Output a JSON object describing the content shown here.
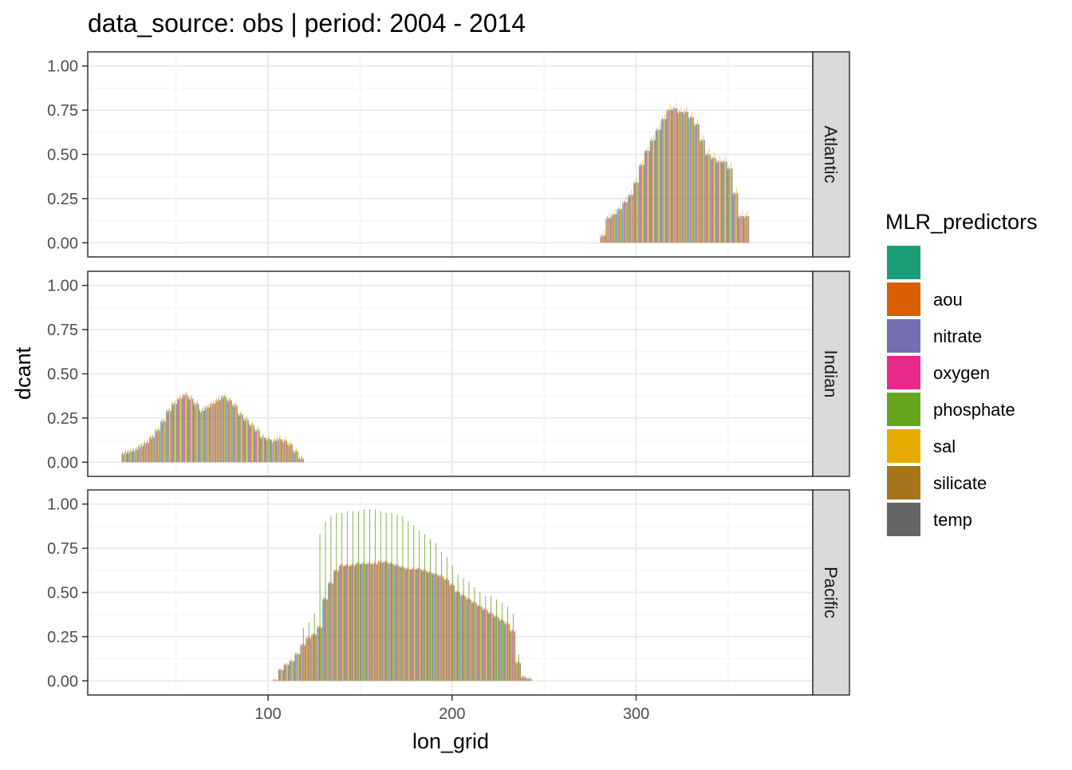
{
  "chart_data": {
    "type": "bar",
    "title": "data_source: obs | period: 2004 - 2014",
    "xlabel": "lon_grid",
    "ylabel": "dcant",
    "xlim": [
      2,
      396
    ],
    "ylim": [
      -0.08,
      1.08
    ],
    "x_ticks": [
      100,
      200,
      300
    ],
    "y_ticks": [
      0.0,
      0.25,
      0.5,
      0.75,
      1.0
    ],
    "y_tick_labels": [
      "0.00",
      "0.25",
      "0.50",
      "0.75",
      "1.00"
    ],
    "grid": true,
    "legend_position": "right",
    "legend": {
      "title": "MLR_predictors",
      "entries": [
        {
          "label": "",
          "color": "#1B9E77"
        },
        {
          "label": "aou",
          "color": "#D95F02"
        },
        {
          "label": "nitrate",
          "color": "#7570B3"
        },
        {
          "label": "oxygen",
          "color": "#E7298A"
        },
        {
          "label": "phosphate",
          "color": "#66A61E"
        },
        {
          "label": "sal",
          "color": "#E6AB02"
        },
        {
          "label": "silicate",
          "color": "#A6761D"
        },
        {
          "label": "temp",
          "color": "#666666"
        }
      ]
    },
    "facets": [
      {
        "label": "Atlantic",
        "points": [
          [
            282,
            0.04
          ],
          [
            285,
            0.14
          ],
          [
            288,
            0.16
          ],
          [
            291,
            0.19
          ],
          [
            294,
            0.23
          ],
          [
            297,
            0.27
          ],
          [
            300,
            0.34
          ],
          [
            303,
            0.44
          ],
          [
            306,
            0.52
          ],
          [
            309,
            0.58
          ],
          [
            312,
            0.64
          ],
          [
            315,
            0.7
          ],
          [
            318,
            0.75
          ],
          [
            321,
            0.76
          ],
          [
            324,
            0.74
          ],
          [
            327,
            0.74
          ],
          [
            330,
            0.71
          ],
          [
            333,
            0.67
          ],
          [
            336,
            0.58
          ],
          [
            339,
            0.5
          ],
          [
            342,
            0.48
          ],
          [
            345,
            0.46
          ],
          [
            348,
            0.46
          ],
          [
            351,
            0.42
          ],
          [
            354,
            0.28
          ],
          [
            357,
            0.15
          ],
          [
            360,
            0.15
          ]
        ],
        "offsets": [
          0,
          -0.01,
          0.01,
          0,
          0,
          0.03,
          0,
          0
        ],
        "spikes": []
      },
      {
        "label": "Indian",
        "points": [
          [
            22,
            0.05
          ],
          [
            25,
            0.06
          ],
          [
            28,
            0.07
          ],
          [
            31,
            0.09
          ],
          [
            34,
            0.11
          ],
          [
            37,
            0.14
          ],
          [
            40,
            0.18
          ],
          [
            43,
            0.23
          ],
          [
            46,
            0.29
          ],
          [
            49,
            0.33
          ],
          [
            52,
            0.36
          ],
          [
            55,
            0.38
          ],
          [
            58,
            0.36
          ],
          [
            61,
            0.33
          ],
          [
            64,
            0.29
          ],
          [
            67,
            0.31
          ],
          [
            70,
            0.33
          ],
          [
            73,
            0.35
          ],
          [
            76,
            0.37
          ],
          [
            79,
            0.35
          ],
          [
            82,
            0.32
          ],
          [
            85,
            0.27
          ],
          [
            88,
            0.24
          ],
          [
            91,
            0.21
          ],
          [
            94,
            0.18
          ],
          [
            97,
            0.14
          ],
          [
            100,
            0.13
          ],
          [
            103,
            0.12
          ],
          [
            106,
            0.13
          ],
          [
            109,
            0.12
          ],
          [
            112,
            0.1
          ],
          [
            115,
            0.06
          ],
          [
            118,
            0.02
          ]
        ],
        "offsets": [
          0,
          0.01,
          -0.01,
          0,
          0.01,
          0.02,
          0,
          0
        ],
        "spikes": []
      },
      {
        "label": "Pacific",
        "points": [
          [
            104,
            0.0
          ],
          [
            107,
            0.06
          ],
          [
            110,
            0.09
          ],
          [
            113,
            0.11
          ],
          [
            116,
            0.15
          ],
          [
            119,
            0.2
          ],
          [
            122,
            0.24
          ],
          [
            125,
            0.26
          ],
          [
            128,
            0.3
          ],
          [
            131,
            0.46
          ],
          [
            134,
            0.55
          ],
          [
            137,
            0.62
          ],
          [
            140,
            0.65
          ],
          [
            143,
            0.65
          ],
          [
            146,
            0.65
          ],
          [
            149,
            0.66
          ],
          [
            152,
            0.66
          ],
          [
            155,
            0.66
          ],
          [
            158,
            0.66
          ],
          [
            161,
            0.67
          ],
          [
            164,
            0.67
          ],
          [
            167,
            0.66
          ],
          [
            170,
            0.65
          ],
          [
            173,
            0.64
          ],
          [
            176,
            0.63
          ],
          [
            179,
            0.63
          ],
          [
            182,
            0.63
          ],
          [
            185,
            0.62
          ],
          [
            188,
            0.61
          ],
          [
            191,
            0.6
          ],
          [
            194,
            0.59
          ],
          [
            197,
            0.57
          ],
          [
            200,
            0.54
          ],
          [
            203,
            0.5
          ],
          [
            206,
            0.48
          ],
          [
            209,
            0.46
          ],
          [
            212,
            0.44
          ],
          [
            215,
            0.42
          ],
          [
            218,
            0.4
          ],
          [
            221,
            0.38
          ],
          [
            224,
            0.36
          ],
          [
            227,
            0.34
          ],
          [
            230,
            0.32
          ],
          [
            233,
            0.28
          ],
          [
            236,
            0.1
          ],
          [
            239,
            0.02
          ],
          [
            242,
            0.01
          ]
        ],
        "offsets": [
          0,
          0.01,
          0,
          0.01,
          0,
          0.01,
          0,
          0
        ],
        "spikes": [
          [
            119,
            0.3
          ],
          [
            122,
            0.33
          ],
          [
            125,
            0.38
          ],
          [
            128,
            0.83
          ],
          [
            131,
            0.9
          ],
          [
            134,
            0.93
          ],
          [
            137,
            0.95
          ],
          [
            140,
            0.95
          ],
          [
            143,
            0.96
          ],
          [
            146,
            0.96
          ],
          [
            149,
            0.96
          ],
          [
            152,
            0.97
          ],
          [
            155,
            0.97
          ],
          [
            158,
            0.97
          ],
          [
            161,
            0.96
          ],
          [
            164,
            0.95
          ],
          [
            167,
            0.95
          ],
          [
            170,
            0.94
          ],
          [
            173,
            0.93
          ],
          [
            176,
            0.9
          ],
          [
            179,
            0.88
          ],
          [
            182,
            0.85
          ],
          [
            185,
            0.83
          ],
          [
            188,
            0.8
          ],
          [
            191,
            0.78
          ],
          [
            194,
            0.73
          ],
          [
            197,
            0.7
          ],
          [
            200,
            0.65
          ],
          [
            203,
            0.6
          ],
          [
            206,
            0.58
          ],
          [
            209,
            0.56
          ],
          [
            212,
            0.53
          ],
          [
            215,
            0.5
          ],
          [
            218,
            0.48
          ],
          [
            221,
            0.48
          ],
          [
            224,
            0.46
          ],
          [
            227,
            0.44
          ],
          [
            230,
            0.42
          ],
          [
            233,
            0.38
          ],
          [
            236,
            0.15
          ]
        ]
      }
    ]
  }
}
